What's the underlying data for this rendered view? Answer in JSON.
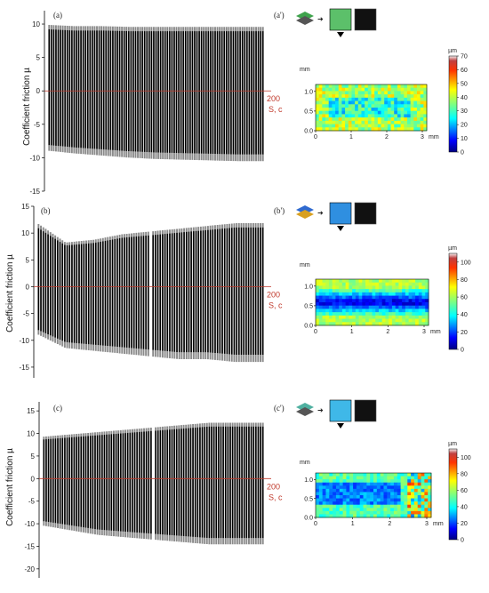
{
  "chart_data": [
    {
      "type": "line",
      "panel_label": "(a)",
      "ylabel": "Coefficient friction µ",
      "yticks": [
        -15,
        -10,
        -5,
        0,
        5,
        10
      ],
      "ylim": [
        -15,
        12
      ],
      "x_end_label": "200",
      "x_axis_label": "S, c",
      "x_range": [
        0,
        200
      ],
      "envelope": {
        "x": [
          0,
          25,
          50,
          75,
          100,
          125,
          150,
          175,
          200
        ],
        "upper": [
          9.6,
          9.4,
          9.4,
          9.3,
          9.3,
          9.3,
          9.3,
          9.3,
          9.3
        ],
        "lower": [
          -8.6,
          -9.0,
          -9.3,
          -9.6,
          -9.8,
          -9.9,
          -10.0,
          -10.1,
          -10.1
        ]
      }
    },
    {
      "type": "line",
      "panel_label": "(b)",
      "ylabel": "Coefficient friction µ",
      "yticks": [
        -15,
        -10,
        -5,
        0,
        5,
        10,
        15
      ],
      "ylim": [
        -17,
        15
      ],
      "x_end_label": "200",
      "x_axis_label": "S, c",
      "x_range": [
        0,
        200
      ],
      "envelope": {
        "x": [
          0,
          25,
          50,
          75,
          100,
          125,
          150,
          175,
          200
        ],
        "upper": [
          11.5,
          8.0,
          8.5,
          9.5,
          10.0,
          10.5,
          11.0,
          11.5,
          11.5
        ],
        "lower": [
          -8.5,
          -11.0,
          -11.5,
          -12.0,
          -12.5,
          -13.0,
          -13.0,
          -13.5,
          -13.5
        ]
      }
    },
    {
      "type": "line",
      "panel_label": "(c)",
      "ylabel": "Coefficient friction µ",
      "yticks": [
        -20,
        -15,
        -10,
        -5,
        0,
        5,
        10,
        15
      ],
      "ylim": [
        -22,
        17
      ],
      "x_end_label": "200",
      "x_axis_label": "S, c",
      "x_range": [
        0,
        200
      ],
      "envelope": {
        "x": [
          0,
          25,
          50,
          75,
          100,
          125,
          150,
          175,
          200
        ],
        "upper": [
          9.0,
          9.5,
          10.0,
          10.5,
          11.0,
          11.5,
          12.0,
          12.0,
          12.0
        ],
        "lower": [
          -10.0,
          -11.0,
          -12.0,
          -12.5,
          -13.0,
          -13.5,
          -14.0,
          -14.0,
          -14.0
        ]
      }
    },
    {
      "type": "heatmap",
      "panel_label": "(a')",
      "x_unit": "mm",
      "y_unit": "mm",
      "xticks": [
        "0",
        "1",
        "2",
        "3"
      ],
      "yticks": [
        "0.0",
        "0.5",
        "1.0"
      ],
      "colorbar_unit": "µm",
      "colorbar_ticks": [
        "0",
        "10",
        "20",
        "30",
        "40",
        "50",
        "60",
        "70"
      ],
      "colorbar_range": [
        0,
        70
      ],
      "base_value": 38
    },
    {
      "type": "heatmap",
      "panel_label": "(b')",
      "x_unit": "mm",
      "y_unit": "mm",
      "xticks": [
        "0",
        "1",
        "2",
        "3"
      ],
      "yticks": [
        "0.0",
        "0.5",
        "1.0"
      ],
      "colorbar_unit": "µm",
      "colorbar_ticks": [
        "0",
        "20",
        "40",
        "60",
        "80",
        "100"
      ],
      "colorbar_range": [
        0,
        110
      ],
      "base_value": 60
    },
    {
      "type": "heatmap",
      "panel_label": "(c')",
      "x_unit": "mm",
      "y_unit": "mm",
      "xticks": [
        "0",
        "1",
        "2",
        "3"
      ],
      "yticks": [
        "0.0",
        "0.5",
        "1.0"
      ],
      "colorbar_unit": "µm",
      "colorbar_ticks": [
        "0",
        "20",
        "40",
        "60",
        "80",
        "100"
      ],
      "colorbar_range": [
        0,
        110
      ],
      "base_value": 50
    }
  ],
  "colors": {
    "signal": "#000000",
    "envelope_grey": "#8a8a8a",
    "zero_line": "#c0392b"
  }
}
